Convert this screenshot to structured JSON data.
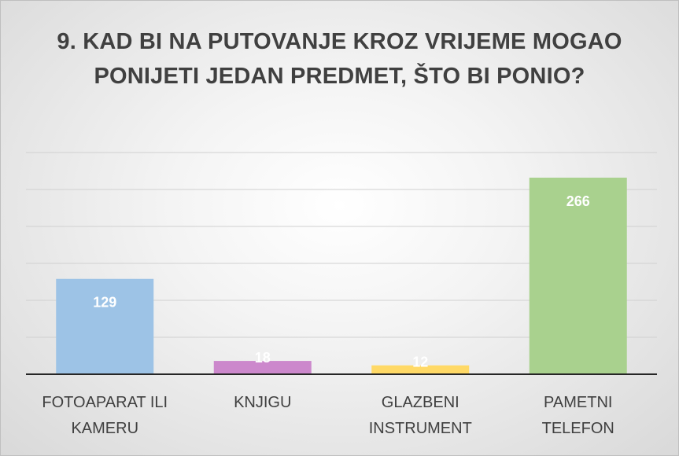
{
  "chart_data": {
    "type": "bar",
    "title": "9. KAD BI NA PUTOVANJE KROZ VRIJEME MOGAO PONIJETI JEDAN PREDMET, ŠTO BI PONIO?",
    "categories": [
      "FOTOAPARAT ILI KAMERU",
      "KNJIGU",
      "GLAZBENI INSTRUMENT",
      "PAMETNI TELEFON"
    ],
    "values": [
      129,
      18,
      12,
      266
    ],
    "data_labels": [
      "129",
      "18",
      "12",
      "266"
    ],
    "colors": [
      "#9dc3e6",
      "#cc88cc",
      "#ffd966",
      "#a9d18e"
    ],
    "ylim": [
      0,
      300
    ],
    "grid": true,
    "legend": "none",
    "xlabel": "",
    "ylabel": ""
  }
}
